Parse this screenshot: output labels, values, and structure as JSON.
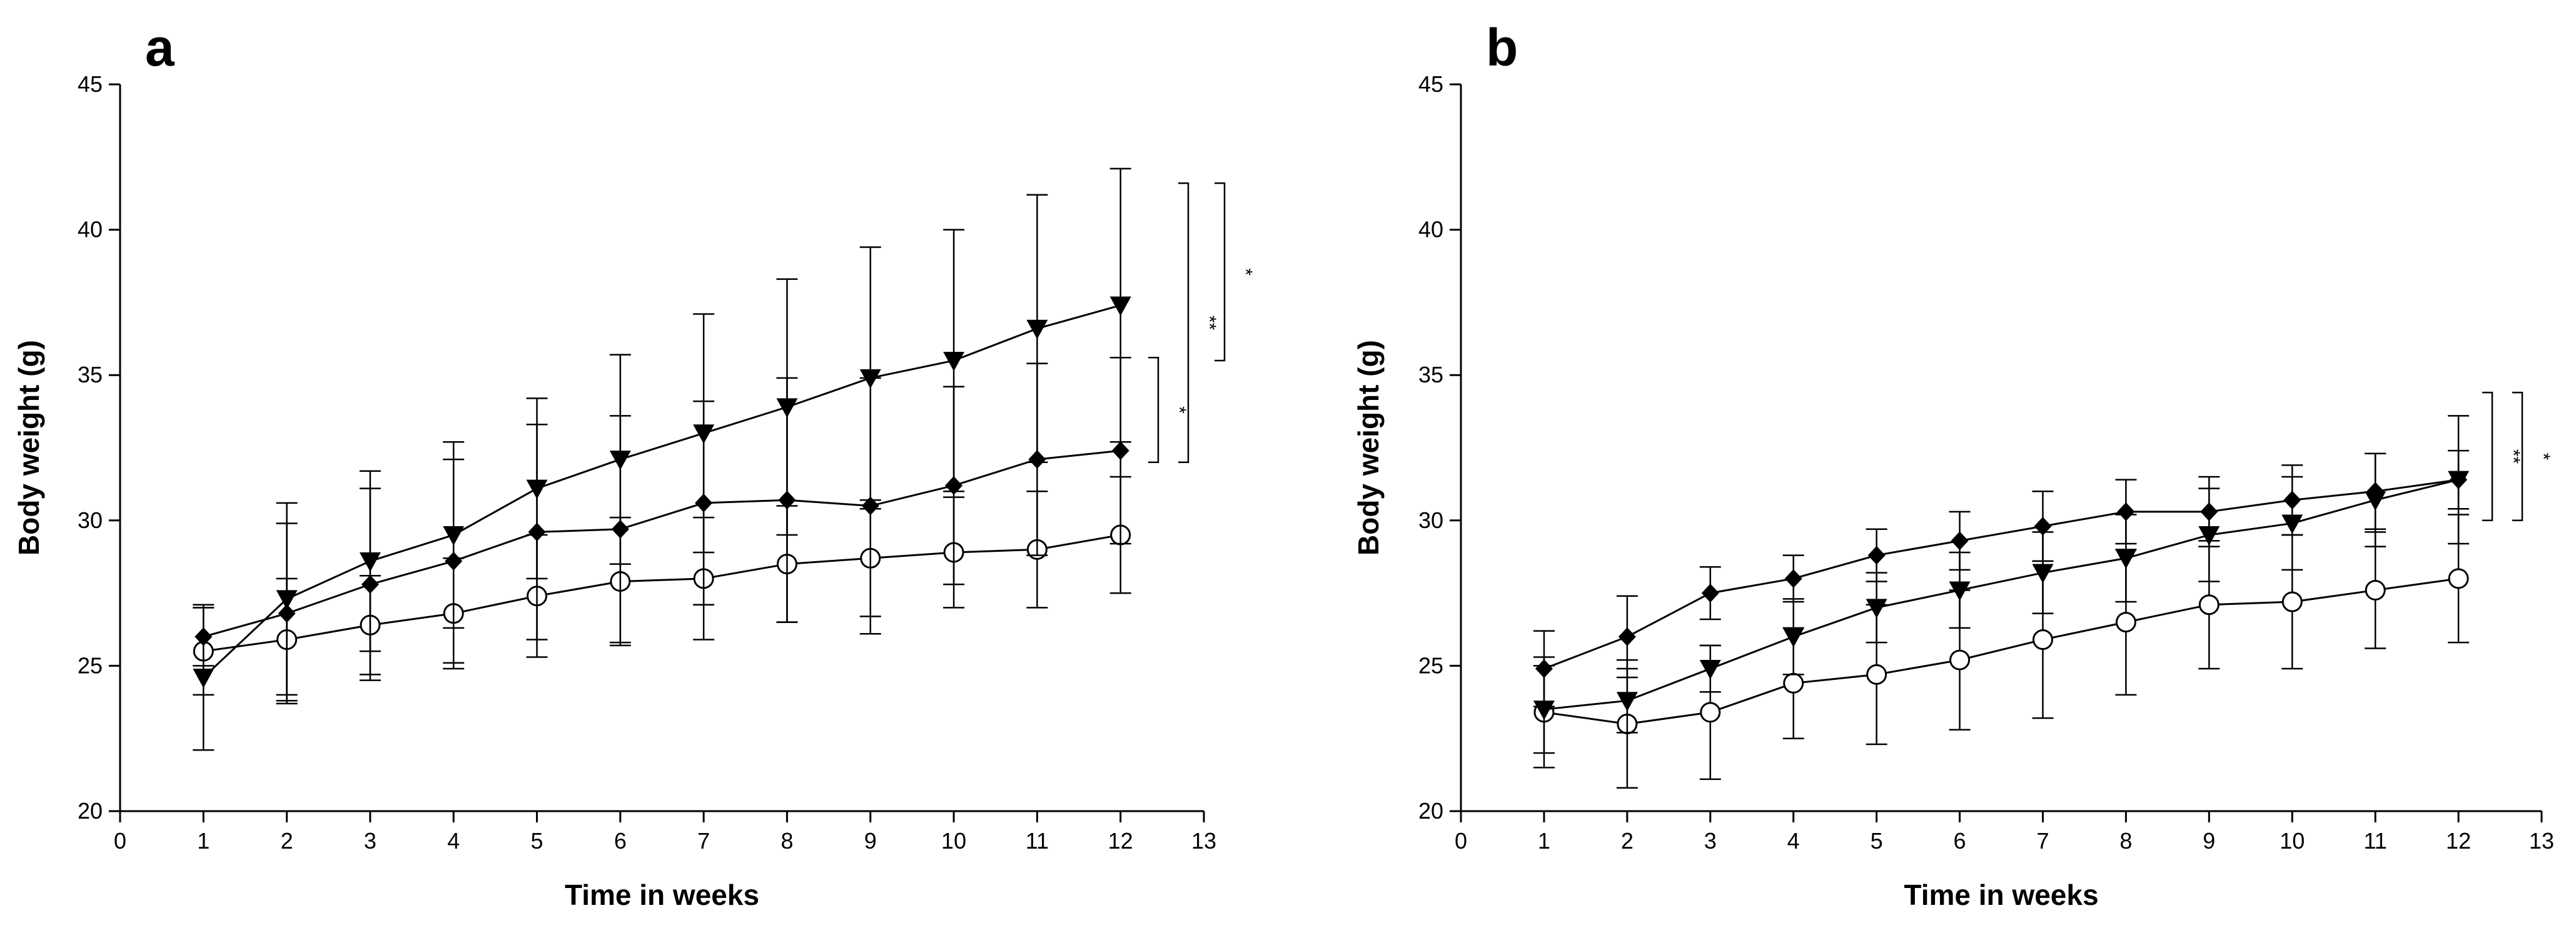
{
  "chart_data": [
    {
      "type": "line",
      "panel_label": "a",
      "xlabel": "Time in weeks",
      "ylabel": "Body weight (g)",
      "xlim": [
        0,
        13
      ],
      "ylim": [
        20,
        45
      ],
      "xticks": [
        0,
        1,
        2,
        3,
        4,
        5,
        6,
        7,
        8,
        9,
        10,
        11,
        12,
        13
      ],
      "yticks": [
        20,
        25,
        30,
        35,
        40,
        45
      ],
      "x": [
        1,
        2,
        3,
        4,
        5,
        6,
        7,
        8,
        9,
        10,
        11,
        12
      ],
      "series": [
        {
          "name": "open circle",
          "marker": "open-circle",
          "values": [
            25.5,
            25.9,
            26.4,
            26.8,
            27.4,
            27.9,
            28.0,
            28.5,
            28.7,
            28.9,
            29.0,
            29.5
          ],
          "error": [
            1.5,
            2.1,
            1.7,
            1.9,
            2.1,
            2.2,
            2.1,
            2.0,
            2.0,
            1.9,
            2.0,
            2.0
          ]
        },
        {
          "name": "filled diamond",
          "marker": "filled-diamond",
          "values": [
            26.0,
            26.8,
            27.8,
            28.6,
            29.6,
            29.7,
            30.6,
            30.7,
            30.5,
            31.2,
            32.1,
            32.4
          ],
          "error": [
            1.0,
            3.1,
            3.3,
            3.5,
            3.7,
            3.9,
            3.5,
            4.2,
            4.4,
            3.4,
            3.3,
            3.2
          ]
        },
        {
          "name": "filled triangle",
          "marker": "filled-triangle-down",
          "values": [
            24.6,
            27.3,
            28.6,
            29.5,
            31.1,
            32.1,
            33.0,
            33.9,
            34.9,
            35.5,
            36.6,
            37.4
          ],
          "error": [
            2.5,
            3.3,
            3.1,
            3.2,
            3.1,
            3.6,
            4.1,
            4.4,
            4.5,
            4.5,
            4.6,
            4.7
          ]
        }
      ],
      "significance": [
        {
          "label": "*",
          "y_range": [
            32.0,
            35.6
          ]
        },
        {
          "label": "**",
          "y_range": [
            32.0,
            41.6
          ]
        },
        {
          "label": "*",
          "y_range": [
            35.5,
            41.6
          ]
        }
      ]
    },
    {
      "type": "line",
      "panel_label": "b",
      "xlabel": "Time in weeks",
      "ylabel": "Body weight (g)",
      "xlim": [
        0,
        13
      ],
      "ylim": [
        20,
        45
      ],
      "xticks": [
        0,
        1,
        2,
        3,
        4,
        5,
        6,
        7,
        8,
        9,
        10,
        11,
        12,
        13
      ],
      "yticks": [
        20,
        25,
        30,
        35,
        40,
        45
      ],
      "x": [
        1,
        2,
        3,
        4,
        5,
        6,
        7,
        8,
        9,
        10,
        11,
        12
      ],
      "series": [
        {
          "name": "open circle",
          "marker": "open-circle",
          "values": [
            23.4,
            23.0,
            23.4,
            24.4,
            24.7,
            25.2,
            25.9,
            26.5,
            27.1,
            27.2,
            27.6,
            28.0
          ],
          "error": [
            1.9,
            2.2,
            2.3,
            1.9,
            2.4,
            2.4,
            2.7,
            2.5,
            2.2,
            2.3,
            2.0,
            2.2
          ]
        },
        {
          "name": "filled diamond",
          "marker": "filled-diamond",
          "values": [
            24.9,
            26.0,
            27.5,
            28.0,
            28.8,
            29.3,
            29.8,
            30.3,
            30.3,
            30.7,
            31.0,
            31.4
          ],
          "error": [
            1.3,
            1.4,
            0.9,
            0.8,
            0.9,
            1.0,
            1.2,
            1.1,
            1.2,
            1.2,
            1.3,
            1.0
          ]
        },
        {
          "name": "filled triangle",
          "marker": "filled-triangle-down",
          "values": [
            23.5,
            23.8,
            24.9,
            26.0,
            27.0,
            27.6,
            28.2,
            28.7,
            29.5,
            29.9,
            30.7,
            31.4
          ],
          "error": [
            1.5,
            1.1,
            0.8,
            1.3,
            1.2,
            1.3,
            1.4,
            1.5,
            1.6,
            1.6,
            1.6,
            2.2
          ]
        }
      ],
      "significance": [
        {
          "label": "**",
          "y_range": [
            30.0,
            34.4
          ]
        },
        {
          "label": "*",
          "y_range": [
            30.0,
            34.4
          ]
        }
      ]
    }
  ]
}
